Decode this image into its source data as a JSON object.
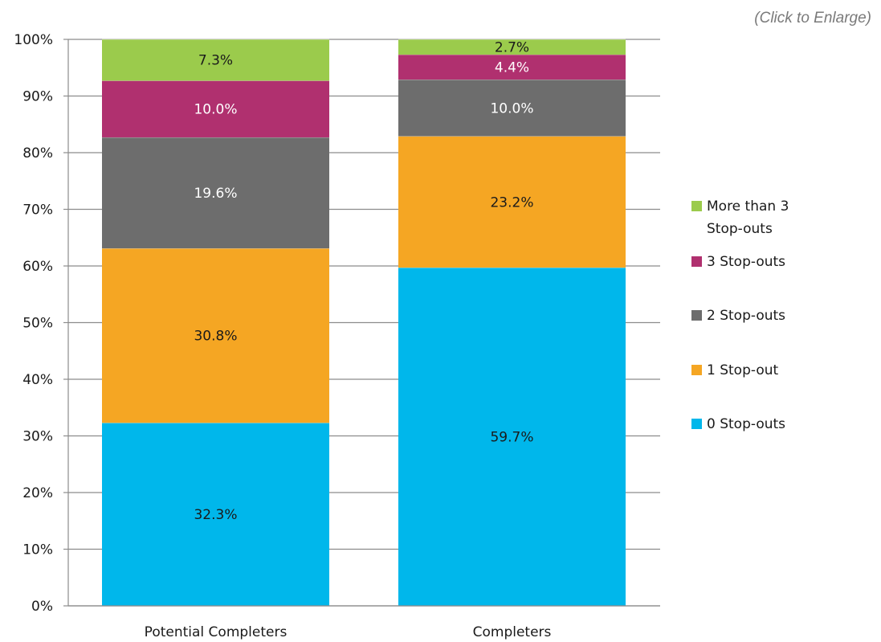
{
  "link": {
    "enlarge_label": "(Click to Enlarge)"
  },
  "chart_data": {
    "type": "bar",
    "stacked": true,
    "categories": [
      "Potential Completers",
      "Completers"
    ],
    "series": [
      {
        "name": "0 Stop-outs",
        "color": "#00b7eb",
        "label_color": "#1a1a1a",
        "values": [
          32.3,
          59.7
        ],
        "labels": [
          "32.3%",
          "59.7%"
        ]
      },
      {
        "name": "1 Stop-out",
        "color": "#f5a623",
        "label_color": "#1a1a1a",
        "values": [
          30.8,
          23.2
        ],
        "labels": [
          "30.8%",
          "23.2%"
        ]
      },
      {
        "name": "2 Stop-outs",
        "color": "#6d6d6d",
        "label_color": "#ffffff",
        "values": [
          19.6,
          10.0
        ],
        "labels": [
          "19.6%",
          "10.0%"
        ]
      },
      {
        "name": "3 Stop-outs",
        "color": "#b0306f",
        "label_color": "#ffffff",
        "values": [
          10.0,
          4.4
        ],
        "labels": [
          "10.0%",
          "4.4%"
        ]
      },
      {
        "name": "More than 3 Stop-outs",
        "legend_lines": [
          "More than 3",
          "Stop-outs"
        ],
        "color": "#9bcb4c",
        "label_color": "#1a1a1a",
        "values": [
          7.3,
          2.7
        ],
        "labels": [
          "7.3%",
          "2.7%"
        ]
      }
    ],
    "y_ticks": [
      "0%",
      "10%",
      "20%",
      "30%",
      "40%",
      "50%",
      "60%",
      "70%",
      "80%",
      "90%",
      "100%"
    ],
    "ylim": [
      0,
      100
    ],
    "grid": true,
    "legend_position": "right"
  }
}
